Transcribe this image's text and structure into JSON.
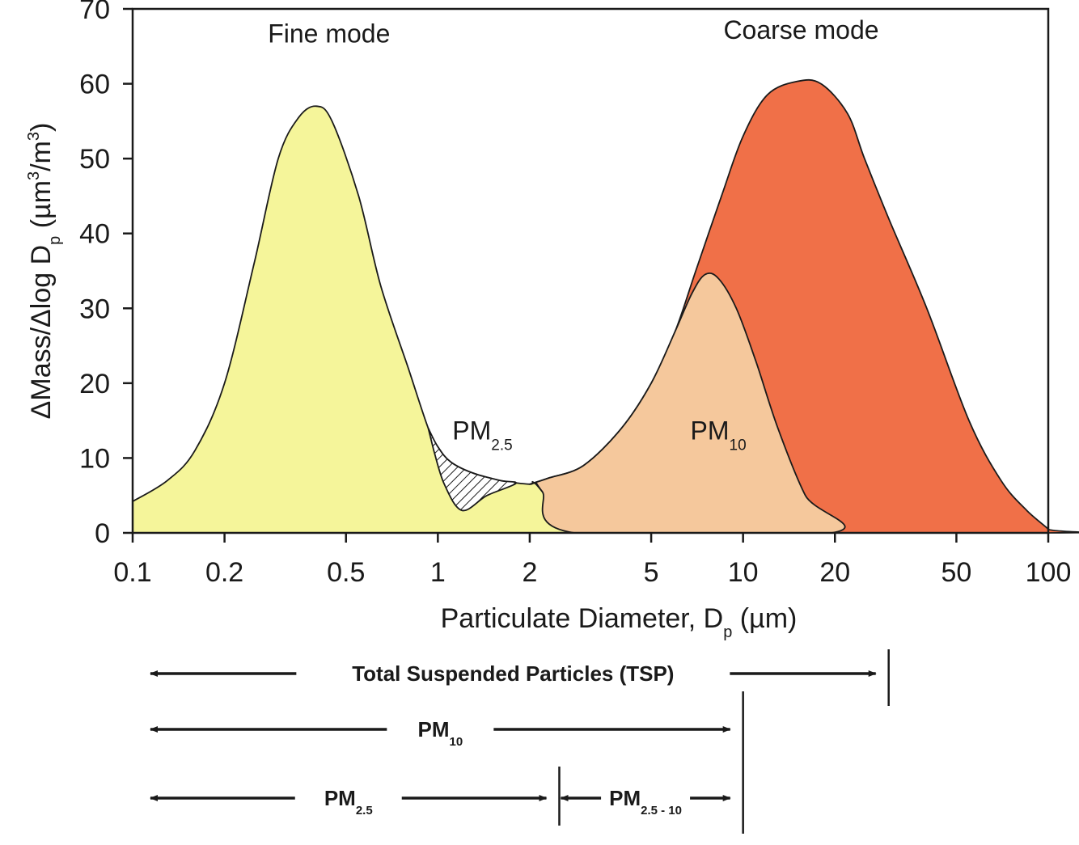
{
  "chart_data": {
    "type": "area",
    "x_scale": "log",
    "xlim": [
      0.1,
      100
    ],
    "ylim": [
      0,
      70
    ],
    "xlabel": "Particulate Diameter, D",
    "xlabel_sub": "p",
    "xlabel_unit": " (µm)",
    "ylabel_parts": [
      "ΔMass/Δlog D",
      "p",
      " (µm",
      "3",
      "/m",
      "3",
      ")"
    ],
    "x_ticks": [
      0.1,
      0.2,
      0.5,
      1,
      2,
      5,
      10,
      20,
      50,
      100
    ],
    "x_tick_labels": [
      "0.1",
      "0.2",
      "0.5",
      "1",
      "2",
      "5",
      "10",
      "20",
      "50",
      "100"
    ],
    "y_ticks": [
      0,
      10,
      20,
      30,
      40,
      50,
      60,
      70
    ],
    "y_tick_labels": [
      "0",
      "10",
      "20",
      "30",
      "40",
      "50",
      "60",
      "70"
    ],
    "colors": {
      "fine_mode": "#f5f59a",
      "coarse_mode": "#f07048",
      "pm10": "#f5c89c",
      "pm25_hatch": "#1a1a1a",
      "outline": "#1a1a1a"
    },
    "series": [
      {
        "name": "Fine mode",
        "fill": "fine_mode",
        "points": [
          [
            0.1,
            4.2
          ],
          [
            0.13,
            7.0
          ],
          [
            0.16,
            11.0
          ],
          [
            0.2,
            20.0
          ],
          [
            0.25,
            36.0
          ],
          [
            0.3,
            50.0
          ],
          [
            0.35,
            55.5
          ],
          [
            0.4,
            57.0
          ],
          [
            0.45,
            55.0
          ],
          [
            0.55,
            45.0
          ],
          [
            0.65,
            33.0
          ],
          [
            0.8,
            22.0
          ],
          [
            0.93,
            14.0
          ],
          [
            1.0,
            11.5
          ],
          [
            1.1,
            9.5
          ],
          [
            1.3,
            8.0
          ],
          [
            1.6,
            7.0
          ],
          [
            2.0,
            6.5
          ],
          [
            2.05,
            6.8
          ],
          [
            2.2,
            5.5
          ],
          [
            2.8,
            0.0
          ],
          [
            1.0,
            0.0
          ],
          [
            0.1,
            0.0
          ]
        ]
      },
      {
        "name": "Coarse mode",
        "fill": "coarse_mode",
        "points": [
          [
            2.0,
            6.5
          ],
          [
            2.3,
            7.3
          ],
          [
            3.0,
            9.0
          ],
          [
            4.0,
            14.0
          ],
          [
            5.0,
            20.0
          ],
          [
            6.0,
            27.0
          ],
          [
            7.0,
            35.0
          ],
          [
            8.5,
            45.0
          ],
          [
            10.0,
            53.0
          ],
          [
            12.0,
            58.5
          ],
          [
            15.0,
            60.3
          ],
          [
            18.0,
            60.0
          ],
          [
            22.0,
            56.0
          ],
          [
            25.0,
            50.0
          ],
          [
            30.0,
            42.0
          ],
          [
            40.0,
            30.0
          ],
          [
            55.0,
            15.0
          ],
          [
            70.0,
            7.0
          ],
          [
            85.0,
            3.0
          ],
          [
            100.0,
            0.5
          ],
          [
            100.0,
            0.0
          ],
          [
            2.0,
            0.0
          ]
        ]
      },
      {
        "name": "PM10",
        "fill": "pm10",
        "points": [
          [
            2.0,
            6.5
          ],
          [
            2.3,
            7.3
          ],
          [
            3.0,
            9.0
          ],
          [
            4.0,
            14.0
          ],
          [
            5.0,
            20.0
          ],
          [
            6.0,
            27.0
          ],
          [
            6.8,
            32.0
          ],
          [
            7.5,
            34.5
          ],
          [
            8.3,
            34.0
          ],
          [
            9.5,
            30.0
          ],
          [
            11.0,
            23.0
          ],
          [
            13.0,
            14.0
          ],
          [
            16.0,
            5.0
          ],
          [
            19.5,
            0.0
          ],
          [
            2.8,
            0.0
          ],
          [
            2.2,
            5.5
          ],
          [
            2.1,
            6.7
          ]
        ]
      },
      {
        "name": "PM2.5",
        "fill": "hatch",
        "points": [
          [
            0.93,
            14.0
          ],
          [
            1.0,
            11.5
          ],
          [
            1.1,
            9.5
          ],
          [
            1.3,
            8.0
          ],
          [
            1.6,
            7.0
          ],
          [
            1.8,
            6.6
          ],
          [
            1.45,
            5.0
          ],
          [
            1.2,
            3.0
          ],
          [
            1.05,
            6.5
          ],
          [
            0.97,
            11.0
          ]
        ]
      }
    ],
    "annotations": [
      {
        "text": "Fine mode",
        "x": 0.44,
        "y": 65.5
      },
      {
        "text": "Coarse mode",
        "x": 15.5,
        "y": 66
      },
      {
        "text": "PM",
        "sub": "2.5",
        "x": 1.4,
        "y": 12.5
      },
      {
        "text": "PM",
        "sub": "10",
        "x": 8.3,
        "y": 12.5
      }
    ],
    "size_ranges": [
      {
        "label": "Total Suspended Particles (TSP)",
        "sub": "",
        "from": 0.1,
        "to": 30
      },
      {
        "label": "PM",
        "sub": "10",
        "from": 0.1,
        "to": 10
      },
      {
        "label": "PM",
        "sub": "2.5",
        "from": 0.1,
        "to": 2.5
      },
      {
        "label": "PM",
        "sub": "2.5 - 10",
        "from": 2.5,
        "to": 10
      }
    ]
  }
}
